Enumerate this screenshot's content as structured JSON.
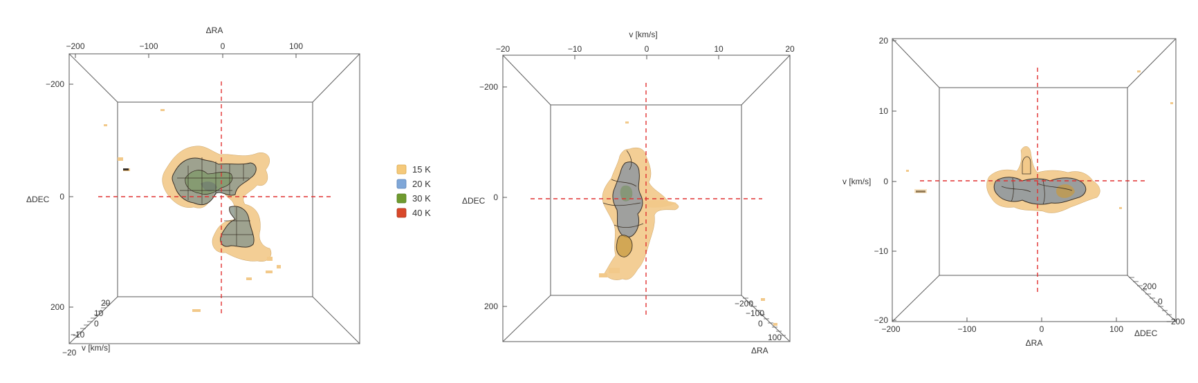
{
  "chart_data": [
    {
      "type": "3d-isosurface",
      "view": "top (ΔRA horizontal, ΔDEC vertical)",
      "axes": {
        "top": {
          "label": "ΔRA",
          "ticks": [
            "−200",
            "−100",
            "0",
            "100"
          ]
        },
        "left": {
          "label": "ΔDEC",
          "ticks": [
            "−200",
            "0",
            "200"
          ]
        },
        "depth": {
          "label": "v [km/s]",
          "ticks": [
            "20",
            "10",
            "0",
            "−10",
            "−20"
          ]
        }
      }
    },
    {
      "type": "3d-isosurface",
      "view": "side (v horizontal, ΔDEC vertical)",
      "axes": {
        "top": {
          "label": "v [km/s]",
          "ticks": [
            "−20",
            "−10",
            "0",
            "10",
            "20"
          ]
        },
        "left": {
          "label": "ΔDEC",
          "ticks": [
            "−200",
            "0",
            "200"
          ]
        },
        "depth": {
          "label": "ΔRA",
          "ticks": [
            "−200",
            "−100",
            "0",
            "100"
          ]
        }
      }
    },
    {
      "type": "3d-isosurface",
      "view": "front (ΔRA horizontal, v vertical)",
      "axes": {
        "bottom": {
          "label": "ΔRA",
          "ticks": [
            "−200",
            "−100",
            "0",
            "100"
          ]
        },
        "left": {
          "label": "v [km/s]",
          "ticks": [
            "20",
            "10",
            "0",
            "−10",
            "−20"
          ]
        },
        "depth": {
          "label": "ΔDEC",
          "ticks": [
            "200",
            "0",
            "−200"
          ]
        }
      }
    }
  ],
  "legend": {
    "placement": "between first and second panel",
    "items": [
      {
        "label": "15 K",
        "color": "#f5c97a"
      },
      {
        "label": "20 K",
        "color": "#7fa7d8"
      },
      {
        "label": "30 K",
        "color": "#6f9a2f"
      },
      {
        "label": "40 K",
        "color": "#d9482a"
      }
    ]
  },
  "colors": {
    "crosshair": "#e03030",
    "box": "#666666",
    "outline": "#3a3026"
  }
}
